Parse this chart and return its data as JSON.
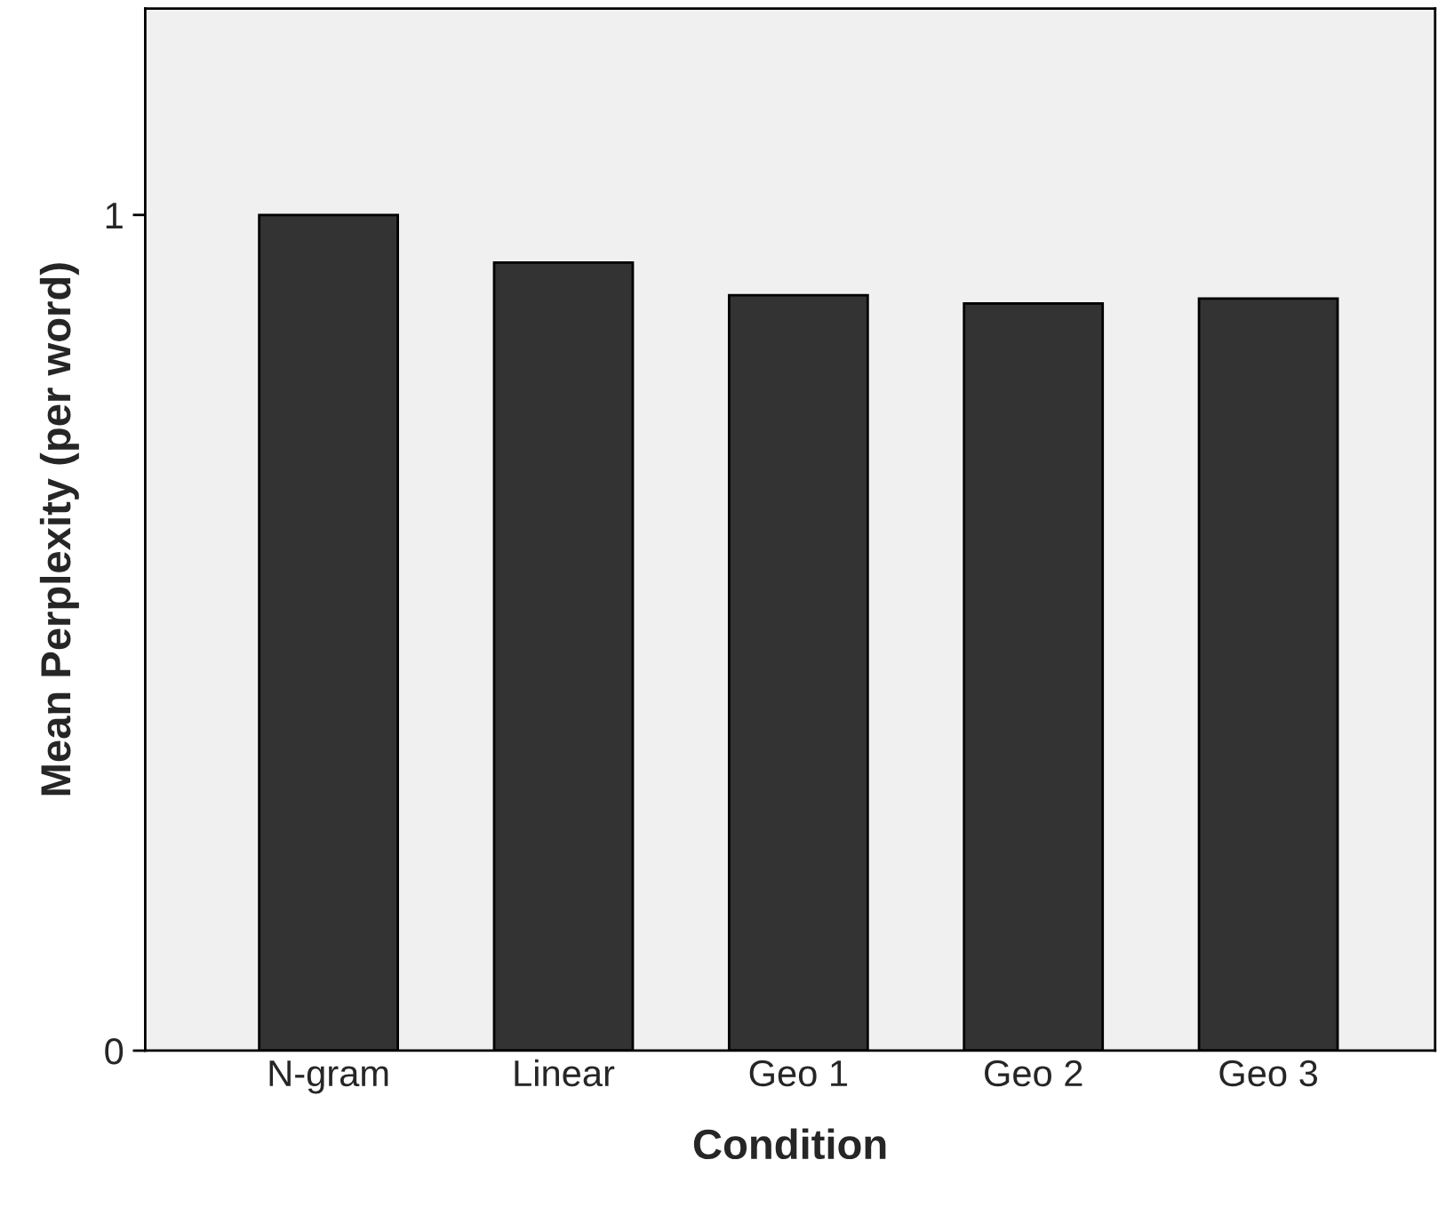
{
  "chart_data": {
    "type": "bar",
    "xlabel": "Condition",
    "ylabel": "Mean Perplexity (per word)",
    "categories": [
      "N-gram",
      "Linear",
      "Geo 1",
      "Geo 2",
      "Geo 3"
    ],
    "values": [
      1.0,
      0.943,
      0.904,
      0.894,
      0.9
    ],
    "color": "#333333",
    "ylim": [
      0,
      1.247
    ],
    "yticks": [
      0,
      1
    ],
    "grid": false
  }
}
